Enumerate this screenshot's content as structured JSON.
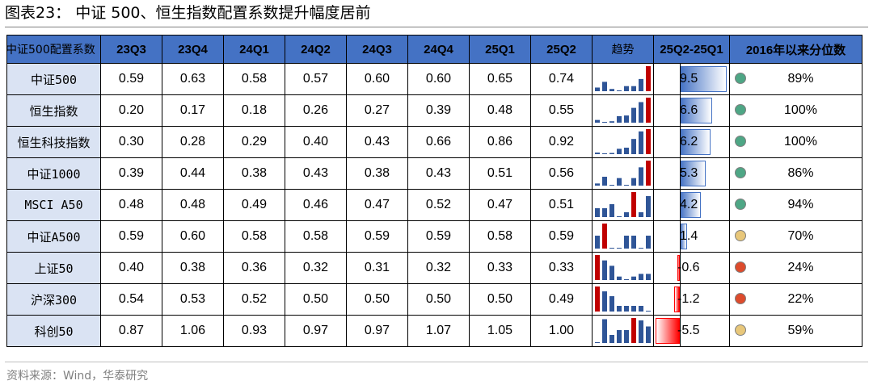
{
  "title": "图表23：  中证 500、恒生指数配置系数提升幅度居前",
  "source": "资料来源：Wind，华泰研究",
  "header": {
    "first": "中证500配置系数",
    "quarters": [
      "23Q3",
      "23Q4",
      "24Q1",
      "24Q2",
      "24Q3",
      "24Q4",
      "25Q1",
      "25Q2"
    ],
    "trend": "趋势",
    "delta": "25Q2-25Q1",
    "percentile": "2016年以来分位数"
  },
  "colors": {
    "header_bg": "#4472c4",
    "name_bg": "#dae3f3",
    "spark_bar": "#2f5597",
    "spark_max": "#c00000",
    "pos_bar": "#4472c4",
    "neg_bar": "#ff0000",
    "dot_green": "#4ea685",
    "dot_yellow": "#e8c77a",
    "dot_red": "#dd4b2c"
  },
  "rows": [
    {
      "name": "中证500",
      "values": [
        "0.59",
        "0.63",
        "0.58",
        "0.57",
        "0.60",
        "0.60",
        "0.65",
        "0.74"
      ],
      "delta": "9.5",
      "delta_value": 9.5,
      "percentile": "89%",
      "dot": "green"
    },
    {
      "name": "恒生指数",
      "values": [
        "0.20",
        "0.17",
        "0.18",
        "0.26",
        "0.27",
        "0.39",
        "0.48",
        "0.55"
      ],
      "delta": "6.6",
      "delta_value": 6.6,
      "percentile": "100%",
      "dot": "green"
    },
    {
      "name": "恒生科技指数",
      "values": [
        "0.30",
        "0.28",
        "0.29",
        "0.40",
        "0.43",
        "0.66",
        "0.86",
        "0.92"
      ],
      "delta": "6.2",
      "delta_value": 6.2,
      "percentile": "100%",
      "dot": "green"
    },
    {
      "name": "中证1000",
      "values": [
        "0.39",
        "0.44",
        "0.38",
        "0.43",
        "0.38",
        "0.43",
        "0.51",
        "0.56"
      ],
      "delta": "5.3",
      "delta_value": 5.3,
      "percentile": "86%",
      "dot": "green"
    },
    {
      "name": "MSCI A50",
      "values": [
        "0.48",
        "0.48",
        "0.49",
        "0.46",
        "0.47",
        "0.52",
        "0.47",
        "0.51"
      ],
      "delta": "4.2",
      "delta_value": 4.2,
      "percentile": "94%",
      "dot": "green"
    },
    {
      "name": "中证A500",
      "values": [
        "0.59",
        "0.60",
        "0.58",
        "0.58",
        "0.59",
        "0.59",
        "0.58",
        "0.59"
      ],
      "delta": "1.4",
      "delta_value": 1.4,
      "percentile": "70%",
      "dot": "yellow"
    },
    {
      "name": "上证50",
      "values": [
        "0.40",
        "0.38",
        "0.36",
        "0.32",
        "0.31",
        "0.32",
        "0.33",
        "0.33"
      ],
      "delta": "-0.6",
      "delta_value": -0.6,
      "percentile": "24%",
      "dot": "red"
    },
    {
      "name": "沪深300",
      "values": [
        "0.54",
        "0.53",
        "0.52",
        "0.50",
        "0.50",
        "0.50",
        "0.50",
        "0.49"
      ],
      "delta": "-1.2",
      "delta_value": -1.2,
      "percentile": "22%",
      "dot": "red"
    },
    {
      "name": "科创50",
      "values": [
        "0.87",
        "1.06",
        "0.93",
        "0.97",
        "0.97",
        "1.07",
        "1.05",
        "1.00"
      ],
      "delta": "-5.5",
      "delta_value": -5.5,
      "percentile": "59%",
      "dot": "yellow"
    }
  ]
}
